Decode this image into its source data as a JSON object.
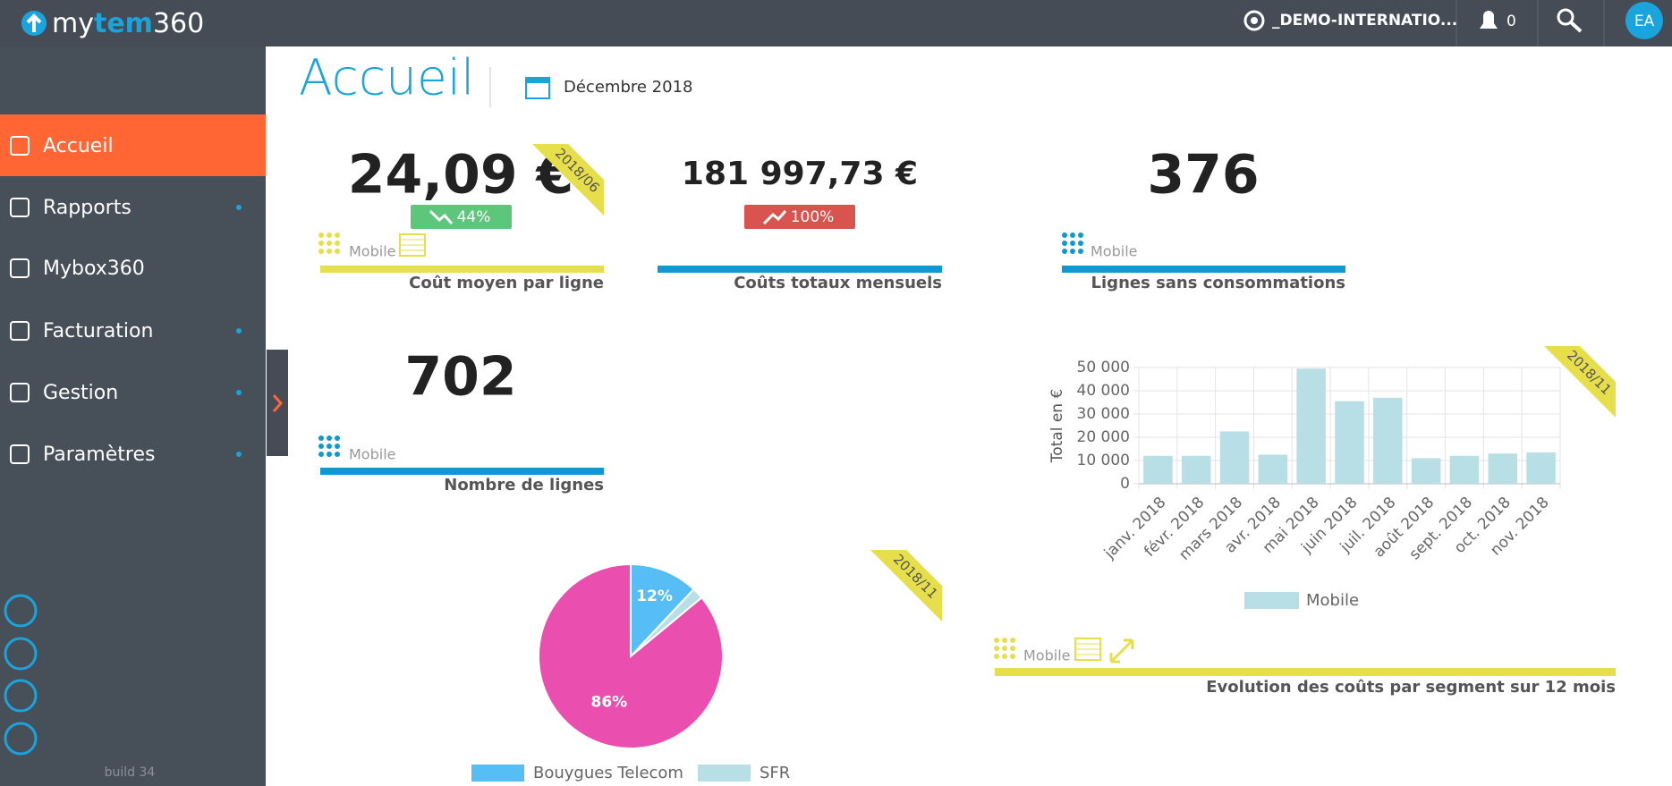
{
  "header": {
    "logo": [
      "my",
      "tem",
      "360"
    ],
    "account": "_DEMO-INTERNATIO...",
    "notifications": "0",
    "avatar": "EA"
  },
  "sidebar": {
    "menu": [
      "Accueil",
      "Rapports",
      "Mybox360",
      "Facturation",
      "Gestion",
      "Paramètres"
    ],
    "build": "build 34"
  },
  "page": {
    "title": "Accueil",
    "period": "Décembre 2018"
  },
  "kpis": [
    {
      "value": "24,09 €",
      "change": "44%",
      "tag": "2018/06",
      "segment": "Mobile",
      "label": "Coût moyen par ligne"
    },
    {
      "value": "181 997,73 €",
      "change": "100%",
      "label": "Coûts totaux mensuels"
    },
    {
      "value": "376",
      "segment": "Mobile",
      "label": "Lignes sans consommations"
    },
    {
      "value": "702",
      "segment": "Mobile",
      "label": "Nombre de lignes"
    }
  ],
  "chart_data": [
    {
      "type": "bar",
      "ribbon": "2018/11",
      "y_label": "Total en €",
      "categories": [
        "janv. 2018",
        "févr. 2018",
        "mars 2018",
        "avr. 2018",
        "mai 2018",
        "juin 2018",
        "juil. 2018",
        "août 2018",
        "sept. 2018",
        "oct. 2018",
        "nov. 2018"
      ],
      "series": [
        {
          "name": "Mobile",
          "color": "#b8dfe5",
          "values": [
            12000,
            12000,
            22500,
            12500,
            49500,
            35500,
            37000,
            11000,
            12000,
            13000,
            13500
          ]
        }
      ],
      "ylim": [
        0,
        50000
      ],
      "yticks": [
        0,
        {
          "value": 10000,
          "label": "10 000"
        },
        {
          "value": 20000,
          "label": "20 000"
        },
        {
          "value": 30000,
          "label": "30 000"
        },
        {
          "value": 40000,
          "label": "40 000"
        },
        {
          "value": 50000,
          "label": "50 000"
        }
      ],
      "grid": true
    },
    {
      "type": "pie",
      "ribbon": "2018/11",
      "categories": [
        "Bouygues Telecom",
        "SFR",
        null
      ],
      "values": [
        12,
        2,
        86
      ],
      "value_labels": [
        "12%",
        null,
        "86%"
      ],
      "colors": [
        "#56bdf5",
        "#b8dfe5",
        "#ea4fb0"
      ]
    }
  ],
  "evolution": {
    "segment": "Mobile",
    "label": "Evolution des coûts par segment sur 12 mois"
  }
}
